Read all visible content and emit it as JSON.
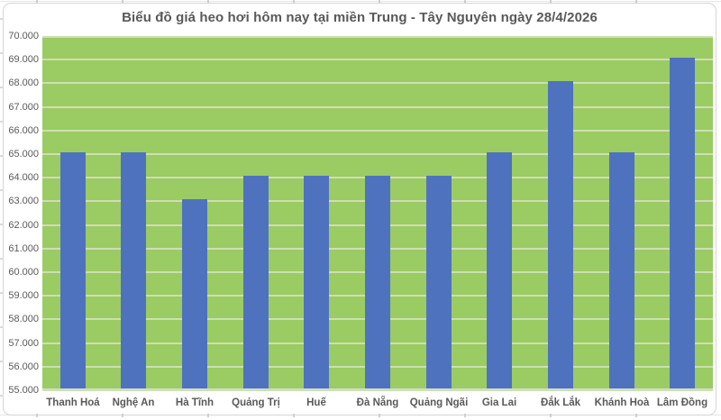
{
  "chart_data": {
    "type": "bar",
    "title": "Biểu đồ giá heo hơi hôm nay tại miền Trung - Tây Nguyên ngày 28/4/2026",
    "categories": [
      "Thanh Hoá",
      "Nghệ An",
      "Hà Tĩnh",
      "Quảng Trị",
      "Huế",
      "Đà Nẵng",
      "Quảng Ngãi",
      "Gia Lai",
      "Đắk Lắk",
      "Khánh Hoà",
      "Lâm Đồng"
    ],
    "values": [
      65000,
      65000,
      63000,
      64000,
      64000,
      64000,
      64000,
      65000,
      68000,
      65000,
      69000
    ],
    "xlabel": "",
    "ylabel": "",
    "ylim": [
      55000,
      70000
    ],
    "ytick_step": 1000,
    "ytick_labels_top_to_bottom": [
      "70.000",
      "69.000",
      "68.000",
      "67.000",
      "66.000",
      "65.000",
      "64.000",
      "63.000",
      "62.000",
      "61.000",
      "60.000",
      "59.000",
      "58.000",
      "57.000",
      "56.000",
      "55.000"
    ],
    "grid": true,
    "legend": null,
    "colors": {
      "bar": "#4F72BE",
      "plot_background": "#9BCB63",
      "gridline": "#CDDFB2",
      "axis_text": "#595959",
      "title_text": "#595959",
      "frame_border": "#D5D5D5"
    }
  }
}
